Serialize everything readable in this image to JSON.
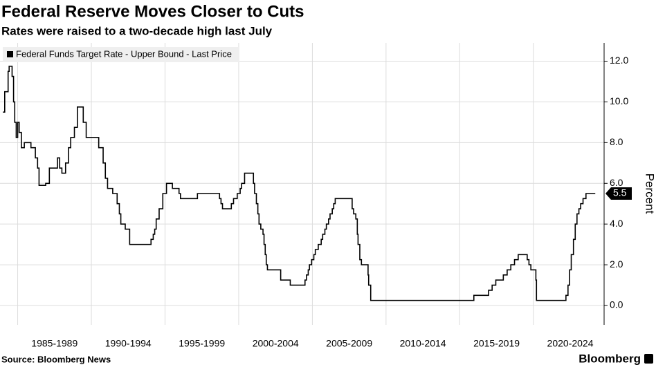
{
  "chart_data": {
    "type": "line",
    "title": "Federal Reserve Moves Closer to Cuts",
    "subtitle": "Rates were raised to a two-decade high last July",
    "y_label": "Percent",
    "source": "Source: Bloomberg News",
    "brand": "Bloomberg",
    "step": true,
    "grid": true,
    "legend": "top-left",
    "y_axis_side": "right",
    "xlim": [
      1983.8,
      2024.8
    ],
    "xgrid": [
      1985,
      1990,
      1995,
      2000,
      2005,
      2010,
      2015,
      2020
    ],
    "xticks": [
      {
        "value": 1987.5,
        "label": "1985-1989"
      },
      {
        "value": 1992.5,
        "label": "1990-1994"
      },
      {
        "value": 1997.5,
        "label": "1995-1999"
      },
      {
        "value": 2002.5,
        "label": "2000-2004"
      },
      {
        "value": 2007.5,
        "label": "2005-2009"
      },
      {
        "value": 2012.5,
        "label": "2010-2014"
      },
      {
        "value": 2017.5,
        "label": "2015-2019"
      },
      {
        "value": 2022.5,
        "label": "2020-2024"
      }
    ],
    "ylim": [
      -0.95,
      12.9
    ],
    "yticks": [
      {
        "value": 0,
        "label": "0.0"
      },
      {
        "value": 2,
        "label": "2.0"
      },
      {
        "value": 4,
        "label": "4.0"
      },
      {
        "value": 6,
        "label": "6.0"
      },
      {
        "value": 8,
        "label": "8.0"
      },
      {
        "value": 10,
        "label": "10.0"
      },
      {
        "value": 12,
        "label": "12.0"
      }
    ],
    "x": [
      1984.0,
      1984.12,
      1984.35,
      1984.42,
      1984.62,
      1984.72,
      1984.8,
      1984.9,
      1985.0,
      1985.1,
      1985.25,
      1985.45,
      1985.9,
      1986.2,
      1986.35,
      1986.45,
      1986.9,
      1987.15,
      1987.7,
      1987.85,
      1988.0,
      1988.25,
      1988.45,
      1988.6,
      1988.85,
      1989.05,
      1989.45,
      1989.65,
      1990.5,
      1990.8,
      1990.95,
      1991.1,
      1991.45,
      1991.75,
      1991.9,
      1992.0,
      1992.3,
      1992.6,
      1994.05,
      1994.2,
      1994.3,
      1994.4,
      1994.6,
      1994.85,
      1995.1,
      1995.5,
      1995.95,
      1996.05,
      1997.2,
      1998.7,
      1998.8,
      1998.9,
      1999.5,
      1999.65,
      1999.9,
      2000.1,
      2000.2,
      2000.4,
      2001.0,
      2001.08,
      2001.2,
      2001.3,
      2001.38,
      2001.5,
      2001.65,
      2001.72,
      2001.8,
      2001.87,
      2001.95,
      2002.85,
      2003.5,
      2004.5,
      2004.6,
      2004.72,
      2004.8,
      2004.95,
      2005.1,
      2005.2,
      2005.4,
      2005.6,
      2005.7,
      2005.85,
      2005.95,
      2006.1,
      2006.2,
      2006.35,
      2006.45,
      2006.55,
      2007.7,
      2007.8,
      2007.95,
      2008.05,
      2008.1,
      2008.22,
      2008.33,
      2008.78,
      2008.82,
      2008.96,
      2015.96,
      2016.96,
      2017.2,
      2017.45,
      2017.96,
      2018.22,
      2018.47,
      2018.72,
      2018.97,
      2019.58,
      2019.7,
      2019.83,
      2020.17,
      2020.21,
      2022.21,
      2022.35,
      2022.46,
      2022.57,
      2022.72,
      2022.84,
      2022.96,
      2023.09,
      2023.21,
      2023.37,
      2023.57,
      2024.2
    ],
    "series": [
      {
        "name": "Federal Funds Target Rate - Upper Bound - Last Price",
        "color": "#000000",
        "last_label": "5.5",
        "values": [
          9.5,
          10.5,
          11.5,
          11.75,
          11.25,
          10.0,
          9.0,
          8.25,
          9.0,
          8.5,
          7.75,
          8.0,
          7.75,
          7.25,
          6.75,
          5.9,
          6.0,
          6.75,
          7.25,
          6.75,
          6.5,
          7.0,
          7.75,
          8.25,
          8.75,
          9.75,
          9.0,
          8.25,
          7.75,
          7.0,
          6.25,
          5.75,
          5.5,
          5.0,
          4.5,
          4.0,
          3.75,
          3.0,
          3.25,
          3.5,
          3.75,
          4.25,
          4.75,
          5.5,
          6.0,
          5.75,
          5.5,
          5.25,
          5.5,
          5.25,
          5.0,
          4.75,
          5.0,
          5.25,
          5.5,
          5.75,
          6.0,
          6.5,
          6.0,
          5.5,
          5.0,
          4.5,
          4.0,
          3.75,
          3.5,
          3.0,
          2.5,
          2.0,
          1.75,
          1.25,
          1.0,
          1.25,
          1.5,
          1.75,
          2.0,
          2.25,
          2.5,
          2.75,
          3.0,
          3.25,
          3.5,
          3.75,
          4.0,
          4.25,
          4.5,
          4.75,
          5.0,
          5.25,
          4.75,
          4.5,
          4.25,
          3.5,
          3.0,
          2.25,
          2.0,
          1.5,
          1.0,
          0.25,
          0.5,
          0.75,
          1.0,
          1.25,
          1.5,
          1.75,
          2.0,
          2.25,
          2.5,
          2.25,
          2.0,
          1.75,
          1.25,
          0.25,
          0.5,
          1.0,
          1.75,
          2.5,
          3.25,
          4.0,
          4.5,
          4.75,
          5.0,
          5.25,
          5.5,
          5.5
        ]
      }
    ]
  }
}
